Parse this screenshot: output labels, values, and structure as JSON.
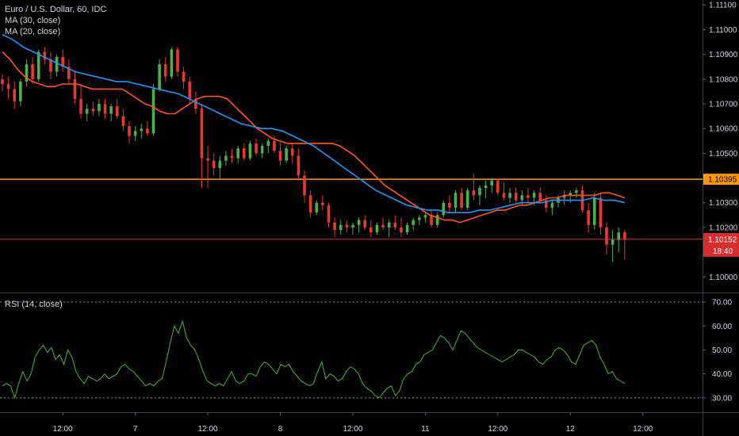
{
  "header": {
    "title": "Euro / U.S. Dollar, 60, IDC",
    "ma30_label": "MA (30, close)",
    "ma20_label": "MA (20, close)",
    "rsi_label": "RSI (14, close)"
  },
  "colors": {
    "background": "#000000",
    "up_candle": "#4caf50",
    "down_candle": "#e53935",
    "ma30": "#2196f3",
    "ma20": "#ff5722",
    "rsi_line": "#4caf50",
    "resistance": "#ff9800",
    "current_price": "#d32f2f",
    "axis_text": "#d1d4dc"
  },
  "chart_data": [
    {
      "type": "candlestick",
      "title": "Euro / U.S. Dollar, 60, IDC",
      "ylim": [
        1.0994,
        1.1112
      ],
      "y_ticks": [
        "1.11100",
        "1.11000",
        "1.10900",
        "1.10800",
        "1.10700",
        "1.10600",
        "1.10500",
        "1.10400",
        "1.10300",
        "1.10200",
        "1.10100",
        "1.10000"
      ],
      "x_ticks": [
        "12:00",
        "7",
        "12:00",
        "8",
        "12:00",
        "11",
        "12:00",
        "12",
        "12:00"
      ],
      "x_tick_index": [
        10,
        22,
        34,
        46,
        58,
        70,
        82,
        94,
        106
      ],
      "horizontal_line": {
        "value": 1.10395,
        "label": "1.10395"
      },
      "current_price": {
        "value": 1.10152,
        "label": "1.10152",
        "countdown": "18:40"
      },
      "ohlc": [
        [
          1.108,
          1.1082,
          1.1075,
          1.1078
        ],
        [
          1.1078,
          1.1081,
          1.1072,
          1.1076
        ],
        [
          1.1076,
          1.1079,
          1.1068,
          1.1071
        ],
        [
          1.1071,
          1.108,
          1.1069,
          1.1079
        ],
        [
          1.1079,
          1.1088,
          1.1077,
          1.1086
        ],
        [
          1.1086,
          1.1089,
          1.1078,
          1.108
        ],
        [
          1.108,
          1.1092,
          1.1079,
          1.1091
        ],
        [
          1.1091,
          1.1093,
          1.1086,
          1.1088
        ],
        [
          1.1088,
          1.1091,
          1.108,
          1.1083
        ],
        [
          1.1083,
          1.109,
          1.1081,
          1.1089
        ],
        [
          1.1089,
          1.1092,
          1.1083,
          1.1085
        ],
        [
          1.1085,
          1.1088,
          1.1078,
          1.108
        ],
        [
          1.108,
          1.1083,
          1.107,
          1.1072
        ],
        [
          1.1072,
          1.1078,
          1.1064,
          1.1066
        ],
        [
          1.1066,
          1.107,
          1.1063,
          1.1068
        ],
        [
          1.1068,
          1.1071,
          1.1065,
          1.1067
        ],
        [
          1.1067,
          1.1072,
          1.1065,
          1.107
        ],
        [
          1.107,
          1.1072,
          1.1064,
          1.1066
        ],
        [
          1.1066,
          1.107,
          1.1063,
          1.1069
        ],
        [
          1.1069,
          1.1072,
          1.1064,
          1.1065
        ],
        [
          1.1065,
          1.1068,
          1.1059,
          1.1061
        ],
        [
          1.1061,
          1.1063,
          1.1054,
          1.1057
        ],
        [
          1.1057,
          1.1061,
          1.1055,
          1.1059
        ],
        [
          1.1059,
          1.1062,
          1.1056,
          1.106
        ],
        [
          1.106,
          1.1063,
          1.1057,
          1.1058
        ],
        [
          1.1058,
          1.1078,
          1.1057,
          1.1076
        ],
        [
          1.1076,
          1.1088,
          1.1075,
          1.1086
        ],
        [
          1.1086,
          1.1089,
          1.1079,
          1.1081
        ],
        [
          1.1081,
          1.1093,
          1.108,
          1.1092
        ],
        [
          1.1092,
          1.1093,
          1.1081,
          1.1083
        ],
        [
          1.1083,
          1.1085,
          1.1076,
          1.1079
        ],
        [
          1.1079,
          1.1081,
          1.107,
          1.1072
        ],
        [
          1.1072,
          1.1075,
          1.1066,
          1.1068
        ],
        [
          1.1068,
          1.107,
          1.1036,
          1.1048
        ],
        [
          1.1048,
          1.1053,
          1.1036,
          1.1047
        ],
        [
          1.1047,
          1.105,
          1.1041,
          1.1044
        ],
        [
          1.1044,
          1.1049,
          1.104,
          1.1047
        ],
        [
          1.1047,
          1.1051,
          1.1045,
          1.1049
        ],
        [
          1.1049,
          1.1052,
          1.1046,
          1.1048
        ],
        [
          1.1048,
          1.1053,
          1.1046,
          1.1052
        ],
        [
          1.1052,
          1.1054,
          1.1047,
          1.1048
        ],
        [
          1.1048,
          1.1055,
          1.1047,
          1.1054
        ],
        [
          1.1054,
          1.1056,
          1.1049,
          1.105
        ],
        [
          1.105,
          1.1054,
          1.1048,
          1.1053
        ],
        [
          1.1053,
          1.1056,
          1.105,
          1.1055
        ],
        [
          1.1055,
          1.1057,
          1.105,
          1.1051
        ],
        [
          1.1051,
          1.1054,
          1.1045,
          1.1047
        ],
        [
          1.1047,
          1.1053,
          1.1046,
          1.1052
        ],
        [
          1.1052,
          1.1054,
          1.1046,
          1.1049
        ],
        [
          1.1049,
          1.1052,
          1.1039,
          1.1041
        ],
        [
          1.1041,
          1.1043,
          1.103,
          1.1033
        ],
        [
          1.1033,
          1.1035,
          1.1024,
          1.1026
        ],
        [
          1.1026,
          1.1031,
          1.1025,
          1.103
        ],
        [
          1.103,
          1.1033,
          1.1027,
          1.1029
        ],
        [
          1.1029,
          1.103,
          1.102,
          1.1022
        ],
        [
          1.1022,
          1.1024,
          1.1016,
          1.1019
        ],
        [
          1.1019,
          1.1023,
          1.1017,
          1.1021
        ],
        [
          1.1021,
          1.1023,
          1.1018,
          1.102
        ],
        [
          1.102,
          1.1022,
          1.1017,
          1.1021
        ],
        [
          1.1021,
          1.1024,
          1.1018,
          1.1023
        ],
        [
          1.1023,
          1.1025,
          1.1019,
          1.102
        ],
        [
          1.102,
          1.1023,
          1.1016,
          1.1018
        ],
        [
          1.1018,
          1.1022,
          1.1017,
          1.1021
        ],
        [
          1.1021,
          1.1024,
          1.1019,
          1.102
        ],
        [
          1.102,
          1.1023,
          1.1016,
          1.1022
        ],
        [
          1.1022,
          1.1025,
          1.1019,
          1.102
        ],
        [
          1.102,
          1.1024,
          1.1016,
          1.1018
        ],
        [
          1.1018,
          1.1022,
          1.1017,
          1.1021
        ],
        [
          1.1021,
          1.1024,
          1.1019,
          1.1023
        ],
        [
          1.1023,
          1.1025,
          1.1021,
          1.1024
        ],
        [
          1.1024,
          1.1026,
          1.1022,
          1.1025
        ],
        [
          1.1025,
          1.1027,
          1.102,
          1.1021
        ],
        [
          1.1021,
          1.1026,
          1.102,
          1.1025
        ],
        [
          1.1025,
          1.1031,
          1.1024,
          1.103
        ],
        [
          1.103,
          1.1033,
          1.1026,
          1.1028
        ],
        [
          1.1028,
          1.1035,
          1.1026,
          1.1034
        ],
        [
          1.1034,
          1.1036,
          1.1027,
          1.1028
        ],
        [
          1.1028,
          1.1036,
          1.1027,
          1.1035
        ],
        [
          1.1035,
          1.1042,
          1.1031,
          1.1033
        ],
        [
          1.1033,
          1.1037,
          1.1029,
          1.1036
        ],
        [
          1.1036,
          1.1039,
          1.1032,
          1.1037
        ],
        [
          1.1037,
          1.104,
          1.1034,
          1.1039
        ],
        [
          1.1039,
          1.104,
          1.1033,
          1.1034
        ],
        [
          1.1034,
          1.1038,
          1.1031,
          1.1032
        ],
        [
          1.1032,
          1.1036,
          1.103,
          1.1034
        ],
        [
          1.1034,
          1.1036,
          1.103,
          1.1031
        ],
        [
          1.1031,
          1.1035,
          1.1029,
          1.1033
        ],
        [
          1.1033,
          1.1036,
          1.103,
          1.1032
        ],
        [
          1.1032,
          1.1035,
          1.1029,
          1.1034
        ],
        [
          1.1034,
          1.1036,
          1.103,
          1.1031
        ],
        [
          1.1031,
          1.1033,
          1.1026,
          1.1028
        ],
        [
          1.1028,
          1.1031,
          1.1025,
          1.103
        ],
        [
          1.103,
          1.1033,
          1.1028,
          1.1032
        ],
        [
          1.1032,
          1.1035,
          1.1029,
          1.1033
        ],
        [
          1.1033,
          1.1035,
          1.103,
          1.1034
        ],
        [
          1.1034,
          1.1036,
          1.1032,
          1.1035
        ],
        [
          1.1035,
          1.1037,
          1.1026,
          1.1027
        ],
        [
          1.1027,
          1.103,
          1.1018,
          1.1021
        ],
        [
          1.1021,
          1.1034,
          1.1019,
          1.1032
        ],
        [
          1.1032,
          1.1034,
          1.1017,
          1.102
        ],
        [
          1.102,
          1.1022,
          1.1009,
          1.1013
        ],
        [
          1.1013,
          1.1019,
          1.1006,
          1.1015
        ],
        [
          1.1015,
          1.102,
          1.101,
          1.1018
        ],
        [
          1.1018,
          1.1019,
          1.1007,
          1.1015
        ]
      ],
      "ma20": [
        1.1091,
        1.1088,
        1.1084,
        1.1081,
        1.1079,
        1.1078,
        1.1077,
        1.1077,
        1.1078,
        1.1078,
        1.1078,
        1.1077,
        1.1076,
        1.1076,
        1.1076,
        1.1076,
        1.1076,
        1.1074,
        1.1072,
        1.107,
        1.1069,
        1.1067,
        1.1066,
        1.1066,
        1.1068,
        1.107,
        1.1072,
        1.1073,
        1.1073,
        1.1073,
        1.1072,
        1.1069,
        1.1066,
        1.1063,
        1.106,
        1.1058,
        1.1056,
        1.1055,
        1.1054,
        1.1054,
        1.1054,
        1.1054,
        1.1054,
        1.1054,
        1.1054,
        1.1053,
        1.1051,
        1.1049,
        1.1046,
        1.1043,
        1.104,
        1.1037,
        1.1035,
        1.1033,
        1.1031,
        1.1029,
        1.1027,
        1.1025,
        1.1024,
        1.1023,
        1.1023,
        1.1022,
        1.1023,
        1.1024,
        1.1025,
        1.1026,
        1.1027,
        1.1027,
        1.1028,
        1.1029,
        1.1029,
        1.103,
        1.1031,
        1.1032,
        1.1032,
        1.1033,
        1.1033,
        1.1033,
        1.1033,
        1.1033,
        1.1034,
        1.1034,
        1.1033,
        1.1032
      ],
      "ma30": [
        1.1098,
        1.1096,
        1.1093,
        1.1091,
        1.1089,
        1.1087,
        1.1085,
        1.1083,
        1.1082,
        1.1081,
        1.108,
        1.1079,
        1.1079,
        1.1078,
        1.1077,
        1.1076,
        1.1075,
        1.1074,
        1.1072,
        1.107,
        1.1068,
        1.1066,
        1.1064,
        1.1062,
        1.1061,
        1.106,
        1.106,
        1.1059,
        1.1057,
        1.1055,
        1.1053,
        1.105,
        1.1047,
        1.1044,
        1.1041,
        1.1038,
        1.1035,
        1.1033,
        1.1031,
        1.1029,
        1.1028,
        1.1027,
        1.1027,
        1.1026,
        1.1026,
        1.1026,
        1.1027,
        1.1027,
        1.1028,
        1.1029,
        1.103,
        1.103,
        1.103,
        1.1031,
        1.1031,
        1.1031,
        1.1031,
        1.1032,
        1.1031,
        1.1031,
        1.103
      ]
    },
    {
      "type": "line",
      "title": "RSI (14, close)",
      "ylim": [
        24,
        73
      ],
      "y_ticks": [
        "70.00",
        "60.00",
        "50.00",
        "40.00",
        "30.00"
      ],
      "levels": [
        70,
        30
      ],
      "series": [
        {
          "name": "RSI (14, close)",
          "values": [
            35,
            36,
            35,
            30,
            36,
            41,
            37,
            40,
            47,
            50,
            52,
            49,
            51,
            46,
            48,
            44,
            50,
            47,
            41,
            38,
            36,
            39,
            38,
            37,
            38,
            40,
            38,
            39,
            40,
            43,
            44,
            42,
            41,
            39,
            37,
            35,
            36,
            35,
            37,
            38,
            45,
            53,
            60,
            57,
            62,
            55,
            52,
            50,
            46,
            41,
            37,
            36,
            35,
            36,
            35,
            38,
            41,
            37,
            36,
            37,
            40,
            40,
            39,
            43,
            45,
            44,
            42,
            40,
            44,
            43,
            44,
            41,
            39,
            37,
            36,
            35,
            36,
            41,
            45,
            38,
            40,
            39,
            37,
            38,
            41,
            43,
            42,
            40,
            36,
            34,
            33,
            31,
            30,
            32,
            34,
            35,
            31,
            33,
            38,
            40,
            41,
            44,
            45,
            48,
            49,
            50,
            53,
            56,
            55,
            53,
            50,
            54,
            58,
            57,
            55,
            53,
            51,
            50,
            49,
            48,
            47,
            46,
            45,
            46,
            47,
            48,
            50,
            50,
            49,
            48,
            47,
            45,
            44,
            46,
            47,
            50,
            51,
            50,
            48,
            45,
            44,
            48,
            52,
            53,
            54,
            52,
            47,
            44,
            40,
            41,
            38,
            37,
            36
          ]
        }
      ]
    }
  ]
}
